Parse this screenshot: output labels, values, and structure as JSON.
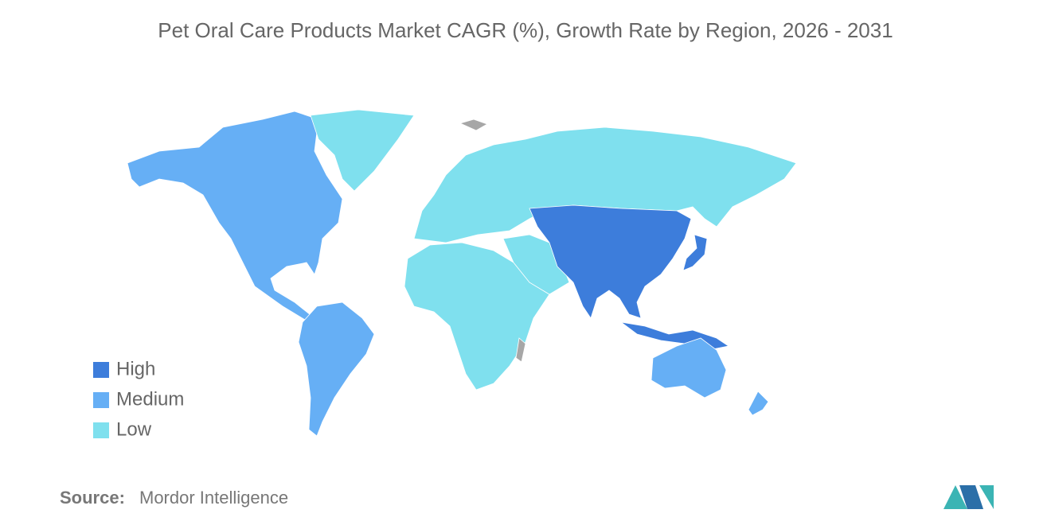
{
  "title": "Pet Oral Care Products Market CAGR (%), Growth Rate by Region, 2026 - 2031",
  "legend": [
    {
      "label": "High",
      "color": "#3d7ddb"
    },
    {
      "label": "Medium",
      "color": "#66aff5"
    },
    {
      "label": "Low",
      "color": "#7fe0ee"
    }
  ],
  "source": {
    "label": "Source:",
    "text": "Mordor Intelligence"
  }
}
